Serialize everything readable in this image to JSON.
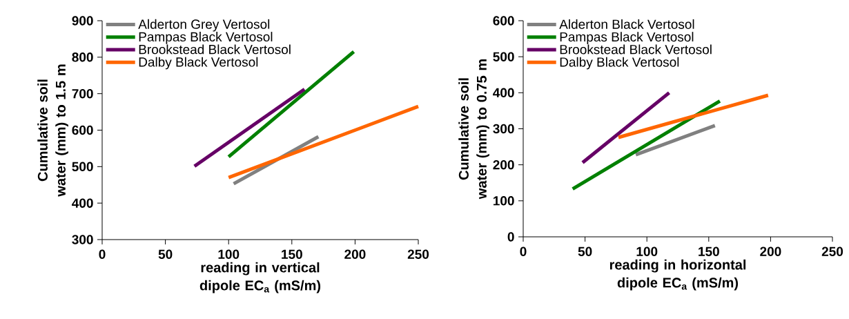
{
  "chart_data": [
    {
      "type": "line",
      "xlabel": "reading in vertical dipole EC$_{a}$ (mS/m)",
      "ylabel": "Cumulative soil water (mm) to 1.5 m",
      "xlim": [
        0,
        250
      ],
      "ylim": [
        300,
        900
      ],
      "xticks": [
        0,
        50,
        100,
        150,
        200,
        250
      ],
      "yticks": [
        300,
        400,
        500,
        600,
        700,
        800,
        900
      ],
      "legend": "top left",
      "marker": "none",
      "line_style": "solid",
      "series": [
        {
          "name": "Alderton Grey Vertosol",
          "color": "#808080",
          "x": [
            104,
            171
          ],
          "values": [
            453,
            582
          ]
        },
        {
          "name": "Pampas Black Vertosol",
          "color": "#008000",
          "x": [
            100,
            199
          ],
          "values": [
            527,
            815
          ]
        },
        {
          "name": "Brookstead Black Vertosol",
          "color": "#660066",
          "x": [
            73,
            160
          ],
          "values": [
            501,
            712
          ]
        },
        {
          "name": "Dalby Black Vertosol",
          "color": "#ff6600",
          "x": [
            100,
            200,
            250
          ],
          "values": [
            470,
            600,
            665
          ]
        }
      ]
    },
    {
      "type": "line",
      "xlabel": "reading in horizontal dipole EC$_{a}$ (mS/m)",
      "ylabel": "Cumulative soil water (mm) to 0.75 m",
      "xlim": [
        0,
        250
      ],
      "ylim": [
        0,
        600
      ],
      "xticks": [
        0,
        50,
        100,
        150,
        200,
        250
      ],
      "yticks": [
        0,
        100,
        200,
        300,
        400,
        500,
        600
      ],
      "legend": "top left",
      "marker": "none",
      "line_style": "solid",
      "series": [
        {
          "name": "Alderton Black Vertosol",
          "color": "#808080",
          "x": [
            91,
            155
          ],
          "values": [
            228,
            309
          ]
        },
        {
          "name": "Pampas Black Vertosol",
          "color": "#008000",
          "x": [
            40,
            159
          ],
          "values": [
            133,
            377
          ]
        },
        {
          "name": "Brookstead Black Vertosol",
          "color": "#660066",
          "x": [
            48,
            118
          ],
          "values": [
            206,
            400
          ]
        },
        {
          "name": "Dalby Black Vertosol",
          "color": "#ff6600",
          "x": [
            77,
            198
          ],
          "values": [
            276,
            393
          ]
        }
      ]
    }
  ]
}
